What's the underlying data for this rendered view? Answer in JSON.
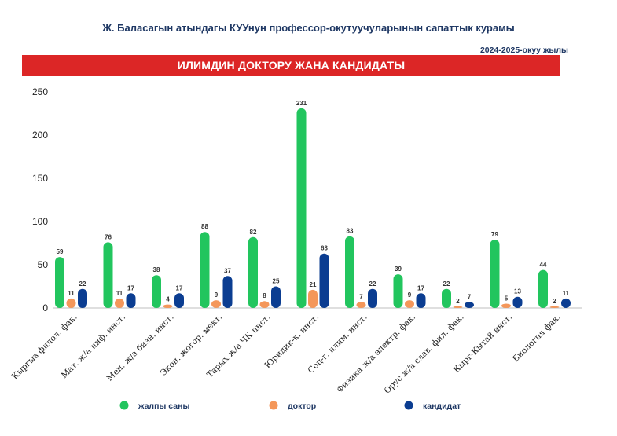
{
  "chart_data": {
    "type": "bar",
    "title": "Ж. Баласагын атындагы КУУнун профессор-окутуучуларынын  сапаттык курамы",
    "subtitle": "2024-2025-окуу жылы",
    "banner": "ИЛИМДИН ДОКТОРУ  ЖАНА  КАНДИДАТЫ",
    "categories": [
      "Кыргыз филол. фак.",
      "Мат. ж/а инф. инст.",
      "Мен. ж/а бизн. инст.",
      "Экон. жогор. мект.",
      "Тарых ж/а ЧК инст.",
      "Юридик-к. инст.",
      "Соц-г. илим. инст.",
      "Физика ж/а электр. фак.",
      "Орус ж/а слав. фил. фак.",
      "Кырг-Кытай инст.",
      "Биология фак."
    ],
    "series": [
      {
        "name": "жалпы саны",
        "color": "#22c55e",
        "values": [
          59,
          76,
          38,
          88,
          82,
          231,
          83,
          39,
          22,
          79,
          44
        ]
      },
      {
        "name": "доктор",
        "color": "#f4975a",
        "values": [
          11,
          11,
          4,
          9,
          8,
          21,
          7,
          9,
          2,
          5,
          2
        ]
      },
      {
        "name": "кандидат",
        "color": "#0b3d91",
        "values": [
          22,
          17,
          17,
          37,
          25,
          63,
          22,
          17,
          7,
          13,
          11
        ]
      }
    ],
    "ylim": [
      0,
      250
    ],
    "yticks": [
      0,
      50,
      100,
      150,
      200,
      250
    ],
    "grid": false,
    "legend": "bottom"
  }
}
